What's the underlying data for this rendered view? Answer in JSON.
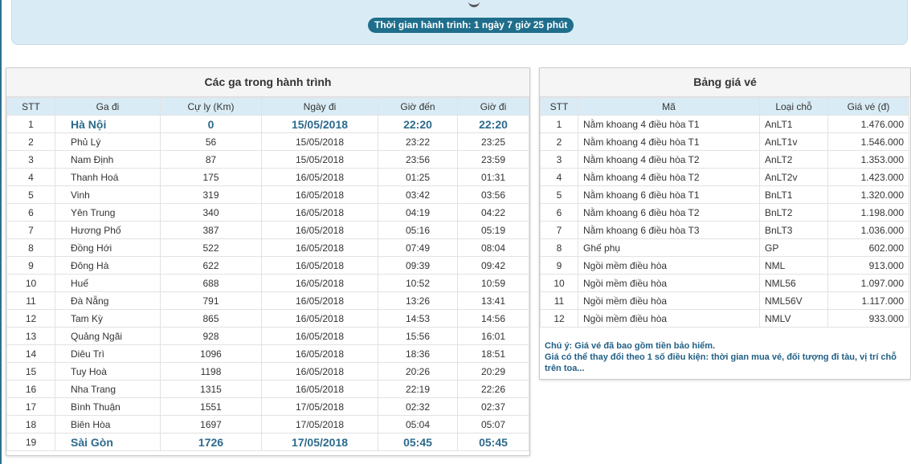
{
  "summary": {
    "duration_label": "Thời gian hành trình: 1 ngày 7 giờ 25 phút"
  },
  "stations_panel": {
    "title": "Các ga trong hành trình",
    "columns": [
      "STT",
      "Ga đi",
      "Cự ly (Km)",
      "Ngày đi",
      "Giờ đến",
      "Giờ đi"
    ],
    "rows": [
      {
        "stt": "1",
        "name": "Hà Nội",
        "km": "0",
        "date": "15/05/2018",
        "arrive": "22:20",
        "depart": "22:20",
        "highlight": true
      },
      {
        "stt": "2",
        "name": "Phủ Lý",
        "km": "56",
        "date": "15/05/2018",
        "arrive": "23:22",
        "depart": "23:25"
      },
      {
        "stt": "3",
        "name": "Nam Định",
        "km": "87",
        "date": "15/05/2018",
        "arrive": "23:56",
        "depart": "23:59"
      },
      {
        "stt": "4",
        "name": "Thanh Hoá",
        "km": "175",
        "date": "16/05/2018",
        "arrive": "01:25",
        "depart": "01:31"
      },
      {
        "stt": "5",
        "name": "Vinh",
        "km": "319",
        "date": "16/05/2018",
        "arrive": "03:42",
        "depart": "03:56"
      },
      {
        "stt": "6",
        "name": "Yên Trung",
        "km": "340",
        "date": "16/05/2018",
        "arrive": "04:19",
        "depart": "04:22"
      },
      {
        "stt": "7",
        "name": "Hương Phố",
        "km": "387",
        "date": "16/05/2018",
        "arrive": "05:16",
        "depart": "05:19"
      },
      {
        "stt": "8",
        "name": "Đồng Hới",
        "km": "522",
        "date": "16/05/2018",
        "arrive": "07:49",
        "depart": "08:04"
      },
      {
        "stt": "9",
        "name": "Đông Hà",
        "km": "622",
        "date": "16/05/2018",
        "arrive": "09:39",
        "depart": "09:42"
      },
      {
        "stt": "10",
        "name": "Huế",
        "km": "688",
        "date": "16/05/2018",
        "arrive": "10:52",
        "depart": "10:59"
      },
      {
        "stt": "11",
        "name": "Đà Nẵng",
        "km": "791",
        "date": "16/05/2018",
        "arrive": "13:26",
        "depart": "13:41"
      },
      {
        "stt": "12",
        "name": "Tam Kỳ",
        "km": "865",
        "date": "16/05/2018",
        "arrive": "14:53",
        "depart": "14:56"
      },
      {
        "stt": "13",
        "name": "Quảng Ngãi",
        "km": "928",
        "date": "16/05/2018",
        "arrive": "15:56",
        "depart": "16:01"
      },
      {
        "stt": "14",
        "name": "Diêu Trì",
        "km": "1096",
        "date": "16/05/2018",
        "arrive": "18:36",
        "depart": "18:51"
      },
      {
        "stt": "15",
        "name": "Tuy Hoà",
        "km": "1198",
        "date": "16/05/2018",
        "arrive": "20:26",
        "depart": "20:29"
      },
      {
        "stt": "16",
        "name": "Nha Trang",
        "km": "1315",
        "date": "16/05/2018",
        "arrive": "22:19",
        "depart": "22:26"
      },
      {
        "stt": "17",
        "name": "Bình Thuận",
        "km": "1551",
        "date": "17/05/2018",
        "arrive": "02:32",
        "depart": "02:37"
      },
      {
        "stt": "18",
        "name": "Biên Hòa",
        "km": "1697",
        "date": "17/05/2018",
        "arrive": "05:04",
        "depart": "05:07"
      },
      {
        "stt": "19",
        "name": "Sài Gòn",
        "km": "1726",
        "date": "17/05/2018",
        "arrive": "05:45",
        "depart": "05:45",
        "highlight": true
      }
    ]
  },
  "prices_panel": {
    "title": "Bảng giá vé",
    "columns": [
      "STT",
      "Mã",
      "Loại chỗ",
      "Giá vé (đ)"
    ],
    "rows": [
      {
        "stt": "1",
        "name": "Nằm khoang 4 điều hòa T1",
        "code": "AnLT1",
        "price": "1.476.000"
      },
      {
        "stt": "2",
        "name": "Nằm khoang 4 điều hòa T1",
        "code": "AnLT1v",
        "price": "1.546.000"
      },
      {
        "stt": "3",
        "name": "Nằm khoang 4 điều hòa T2",
        "code": "AnLT2",
        "price": "1.353.000"
      },
      {
        "stt": "4",
        "name": "Nằm khoang 4 điều hòa T2",
        "code": "AnLT2v",
        "price": "1.423.000"
      },
      {
        "stt": "5",
        "name": "Nằm khoang 6 điều hòa T1",
        "code": "BnLT1",
        "price": "1.320.000"
      },
      {
        "stt": "6",
        "name": "Nằm khoang 6 điều hòa T2",
        "code": "BnLT2",
        "price": "1.198.000"
      },
      {
        "stt": "7",
        "name": "Nằm khoang 6 điều hòa T3",
        "code": "BnLT3",
        "price": "1.036.000"
      },
      {
        "stt": "8",
        "name": "Ghế phụ",
        "code": "GP",
        "price": "602.000"
      },
      {
        "stt": "9",
        "name": "Ngồi mềm điều hòa",
        "code": "NML",
        "price": "913.000"
      },
      {
        "stt": "10",
        "name": "Ngồi mềm điều hòa",
        "code": "NML56",
        "price": "1.097.000"
      },
      {
        "stt": "11",
        "name": "Ngồi mềm điều hòa",
        "code": "NML56V",
        "price": "1.117.000"
      },
      {
        "stt": "12",
        "name": "Ngồi mềm điều hòa",
        "code": "NMLV",
        "price": "933.000"
      }
    ],
    "note_line1": "Chú ý: Giá vé đã bao gồm tiền bảo hiểm.",
    "note_line2": "Giá có thể thay đổi theo 1 số điều kiện: thời gian mua vé, đối tượng đi tàu, vị trí chỗ trên toa..."
  }
}
